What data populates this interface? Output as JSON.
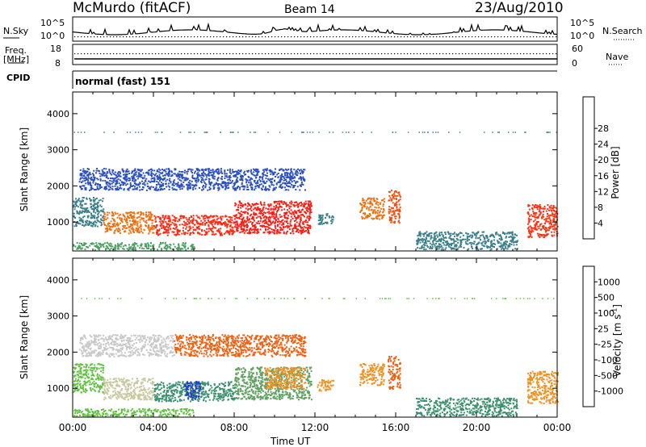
{
  "header": {
    "station": "McMurdo (fitACF)",
    "beam": "Beam 14",
    "date": "23/Aug/2010"
  },
  "top_panels": {
    "nsky_label": "N.Sky",
    "nsky_ticks": [
      "10^5",
      "10^0"
    ],
    "nsearch_label": "N.Search",
    "nsearch_ticks": [
      "10^5",
      "10^0"
    ],
    "freq_label": "Freq.",
    "freq_unit": "[MHz]",
    "freq_ticks": [
      "18",
      "8"
    ],
    "nave_label": "Nave",
    "nave_ticks": [
      "60",
      "0"
    ],
    "cpid_label": "CPID",
    "cpid_value": "normal (fast) 151"
  },
  "chart_data": [
    {
      "type": "heatmap",
      "name": "power",
      "ylabel": "Slant Range [km]",
      "ylim": [
        200,
        4600
      ],
      "yticks": [
        "1000",
        "2000",
        "3000",
        "4000"
      ],
      "xlim": [
        0,
        24
      ],
      "colorbar": {
        "label": "Power [dB]",
        "ticks": [
          "4",
          "8",
          "12",
          "16",
          "20",
          "24",
          "28"
        ],
        "colors": [
          "#1010e0",
          "#2a4fc0",
          "#3a7f8a",
          "#4aa060",
          "#d8d020",
          "#f0a020",
          "#f07010",
          "#ff3010",
          "#ff0000"
        ]
      },
      "regions": [
        {
          "t0": 0,
          "t1": 1.5,
          "r0": 900,
          "r1": 1700,
          "c": "#3a7f8a"
        },
        {
          "t0": 1.5,
          "t1": 4,
          "r0": 700,
          "r1": 1300,
          "c": "#f07010"
        },
        {
          "t0": 4,
          "t1": 8,
          "r0": 650,
          "r1": 1200,
          "c": "#ff2a10"
        },
        {
          "t0": 8,
          "t1": 11.8,
          "r0": 700,
          "r1": 1600,
          "c": "#ff1a10"
        },
        {
          "t0": 12.1,
          "t1": 12.9,
          "r0": 950,
          "r1": 1250,
          "c": "#3a7f8a"
        },
        {
          "t0": 14.2,
          "t1": 15.4,
          "r0": 1100,
          "r1": 1700,
          "c": "#f07010"
        },
        {
          "t0": 15.6,
          "t1": 16.2,
          "r0": 1000,
          "r1": 1900,
          "c": "#f05010"
        },
        {
          "t0": 17,
          "t1": 22,
          "r0": 250,
          "r1": 750,
          "c": "#3a7f8a"
        },
        {
          "t0": 22.5,
          "t1": 24,
          "r0": 600,
          "r1": 1500,
          "c": "#ff3010"
        },
        {
          "t0": 0.3,
          "t1": 11.5,
          "r0": 1900,
          "r1": 2500,
          "c": "#2a4fc0"
        },
        {
          "t0": 0,
          "t1": 6,
          "r0": 250,
          "r1": 450,
          "c": "#4aa060"
        }
      ]
    },
    {
      "type": "heatmap",
      "name": "velocity",
      "ylabel": "Slant Range [km]",
      "ylim": [
        200,
        4600
      ],
      "yticks": [
        "1000",
        "2000",
        "3000",
        "4000"
      ],
      "xlim": [
        0,
        24
      ],
      "xticks": [
        "00:00",
        "04:00",
        "08:00",
        "12:00",
        "16:00",
        "20:00",
        "00:00"
      ],
      "xlabel": "Time UT",
      "colorbar": {
        "label": "Velocity [m s-1]",
        "label_parts": [
          "Velocity [m s",
          "-1",
          "]"
        ],
        "ticks": [
          "-1000",
          "-500",
          "-100",
          "-25",
          "25",
          "100",
          "500",
          "1000"
        ],
        "colors": [
          "#ff0000",
          "#f05010",
          "#f09020",
          "#f0c040",
          "#c8c8c8",
          "#60c040",
          "#3a9070",
          "#3060b0",
          "#2040c0"
        ]
      },
      "regions": [
        {
          "t0": 0,
          "t1": 1.5,
          "r0": 900,
          "r1": 1700,
          "c": "#60c040"
        },
        {
          "t0": 1.5,
          "t1": 4,
          "r0": 700,
          "r1": 1300,
          "c": "#c8c8a0"
        },
        {
          "t0": 4,
          "t1": 8,
          "r0": 650,
          "r1": 1200,
          "c": "#3a9070"
        },
        {
          "t0": 5.5,
          "t1": 6.3,
          "r0": 700,
          "r1": 1200,
          "c": "#2040c0"
        },
        {
          "t0": 8,
          "t1": 11.8,
          "r0": 700,
          "r1": 1600,
          "c": "#60a060"
        },
        {
          "t0": 9.5,
          "t1": 11.5,
          "r0": 1000,
          "r1": 1600,
          "c": "#f09020"
        },
        {
          "t0": 12.1,
          "t1": 12.9,
          "r0": 950,
          "r1": 1250,
          "c": "#f09020"
        },
        {
          "t0": 14.2,
          "t1": 15.4,
          "r0": 1100,
          "r1": 1700,
          "c": "#f09020"
        },
        {
          "t0": 15.6,
          "t1": 16.2,
          "r0": 1000,
          "r1": 1900,
          "c": "#f06010"
        },
        {
          "t0": 17,
          "t1": 22,
          "r0": 250,
          "r1": 750,
          "c": "#3a9070"
        },
        {
          "t0": 22.5,
          "t1": 24,
          "r0": 600,
          "r1": 1500,
          "c": "#f09020"
        },
        {
          "t0": 0.3,
          "t1": 5,
          "r0": 1900,
          "r1": 2500,
          "c": "#c8c8c8"
        },
        {
          "t0": 5,
          "t1": 11.5,
          "r0": 1900,
          "r1": 2500,
          "c": "#f06010"
        },
        {
          "t0": 0,
          "t1": 6,
          "r0": 250,
          "r1": 450,
          "c": "#60c040"
        }
      ]
    }
  ]
}
